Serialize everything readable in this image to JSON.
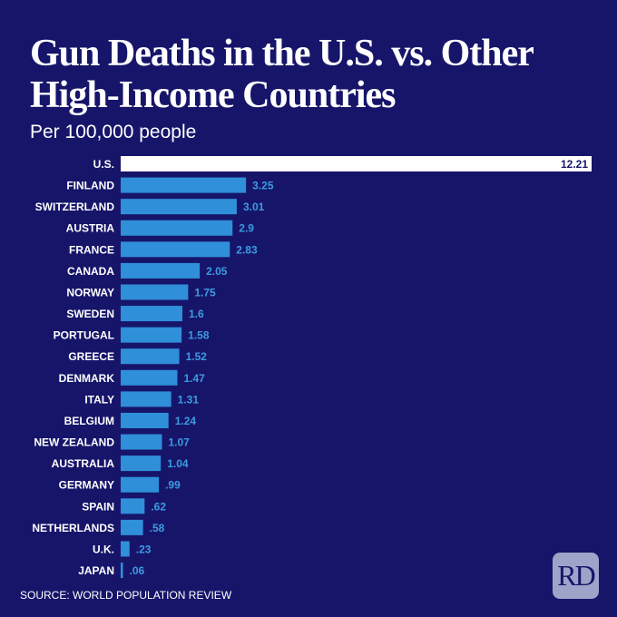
{
  "title": "Gun Deaths in the U.S. vs. Other High-Income Countries",
  "subtitle": "Per 100,000 people",
  "source": "SOURCE: WORLD POPULATION REVIEW",
  "logo": "RD",
  "colors": {
    "background": "#16156a",
    "highlight": "#ffffff",
    "bar": "#2f8fd9",
    "label_value": "#3d9be0"
  },
  "chart_data": {
    "type": "bar",
    "orientation": "horizontal",
    "title": "Gun Deaths in the U.S. vs. Other High-Income Countries",
    "subtitle": "Per 100,000 people",
    "categories": [
      "U.S.",
      "FINLAND",
      "SWITZERLAND",
      "AUSTRIA",
      "FRANCE",
      "CANADA",
      "NORWAY",
      "SWEDEN",
      "PORTUGAL",
      "GREECE",
      "DENMARK",
      "ITALY",
      "BELGIUM",
      "NEW ZEALAND",
      "AUSTRALIA",
      "GERMANY",
      "SPAIN",
      "NETHERLANDS",
      "U.K.",
      "JAPAN"
    ],
    "values": [
      12.21,
      3.25,
      3.01,
      2.9,
      2.83,
      2.05,
      1.75,
      1.6,
      1.58,
      1.52,
      1.47,
      1.31,
      1.24,
      1.07,
      1.04,
      0.99,
      0.62,
      0.58,
      0.23,
      0.06
    ],
    "labels": [
      "12.21",
      "3.25",
      "3.01",
      "2.9",
      "2.83",
      "2.05",
      "1.75",
      "1.6",
      "1.58",
      "1.52",
      "1.47",
      "1.31",
      "1.24",
      "1.07",
      "1.04",
      ".99",
      ".62",
      ".58",
      ".23",
      ".06"
    ],
    "highlight": "U.S.",
    "xlim": [
      0,
      12.21
    ],
    "grid": false
  }
}
